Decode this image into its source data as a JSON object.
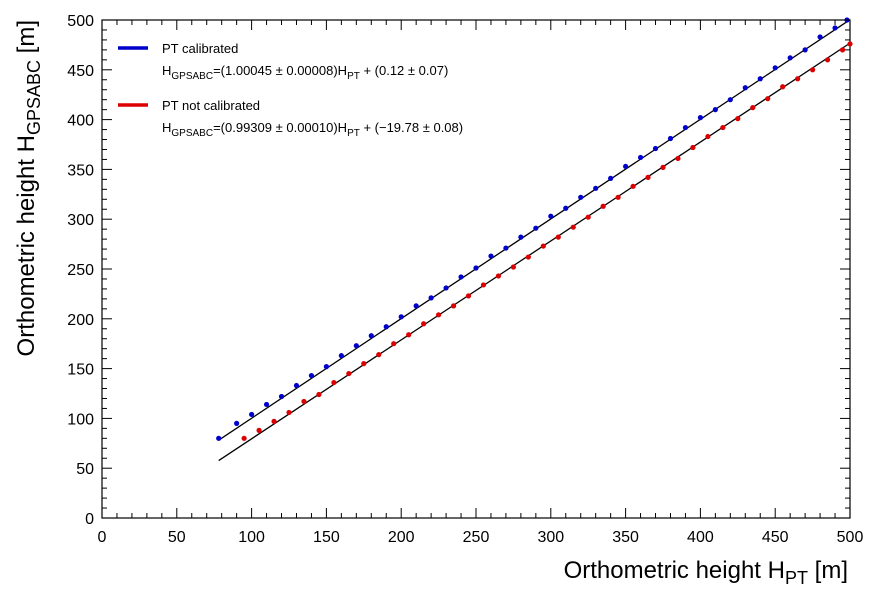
{
  "chart_data": {
    "type": "scatter",
    "title": "",
    "xlabel": {
      "prefix": "Orthometric height H",
      "sub": "PT",
      "suffix": " [m]"
    },
    "ylabel": {
      "prefix": "Orthometric height H",
      "sub": "GPSABC",
      "suffix": " [m]"
    },
    "xlim": [
      0,
      500
    ],
    "ylim": [
      0,
      500
    ],
    "xticks": [
      0,
      50,
      100,
      150,
      200,
      250,
      300,
      350,
      400,
      450,
      500
    ],
    "yticks": [
      0,
      50,
      100,
      150,
      200,
      250,
      300,
      350,
      400,
      450,
      500
    ],
    "minor_tick_step": 10,
    "grid": false,
    "legend_position": "top-left",
    "series": [
      {
        "name": "PT calibrated",
        "color": "#0000cc",
        "equation": {
          "h": "H",
          "sub1": "GPSABC",
          "mid": "=(1.00045 ± 0.00008)H",
          "sub2": "PT",
          "tail": " + (0.12 ± 0.07)"
        },
        "x": [
          78,
          90,
          100,
          110,
          120,
          130,
          140,
          150,
          160,
          170,
          180,
          190,
          200,
          210,
          220,
          230,
          240,
          250,
          260,
          270,
          280,
          290,
          300,
          310,
          320,
          330,
          340,
          350,
          360,
          370,
          380,
          390,
          400,
          410,
          420,
          430,
          440,
          450,
          460,
          470,
          480,
          490,
          498
        ],
        "y": [
          80,
          95,
          104,
          114,
          122,
          133,
          143,
          152,
          163,
          173,
          183,
          192,
          202,
          213,
          221,
          231,
          242,
          251,
          263,
          271,
          282,
          291,
          303,
          311,
          322,
          331,
          341,
          353,
          362,
          371,
          381,
          392,
          402,
          410,
          420,
          432,
          441,
          452,
          462,
          470,
          483,
          492,
          500
        ],
        "fit": {
          "slope": 1.00045,
          "intercept": 0.12,
          "x_range": [
            78,
            500
          ]
        }
      },
      {
        "name": "PT not calibrated",
        "color": "#dd0000",
        "equation": {
          "h": "H",
          "sub1": "GPSABC",
          "mid": "=(0.99309 ± 0.00010)H",
          "sub2": "PT",
          "tail": " + (−19.78 ± 0.08)"
        },
        "x": [
          95,
          105,
          115,
          125,
          135,
          145,
          155,
          165,
          175,
          185,
          195,
          205,
          215,
          225,
          235,
          245,
          255,
          265,
          275,
          285,
          295,
          305,
          315,
          325,
          335,
          345,
          355,
          365,
          375,
          385,
          395,
          405,
          415,
          425,
          435,
          445,
          455,
          465,
          475,
          485,
          495,
          500
        ],
        "y": [
          80,
          88,
          97,
          106,
          117,
          124,
          136,
          145,
          155,
          164,
          175,
          184,
          195,
          204,
          213,
          223,
          234,
          243,
          252,
          262,
          273,
          282,
          292,
          302,
          313,
          322,
          333,
          342,
          352,
          361,
          372,
          383,
          392,
          401,
          412,
          421,
          433,
          441,
          450,
          460,
          470,
          476
        ],
        "fit": {
          "slope": 0.99309,
          "intercept": -19.78,
          "x_range": [
            78,
            500
          ]
        }
      }
    ]
  }
}
